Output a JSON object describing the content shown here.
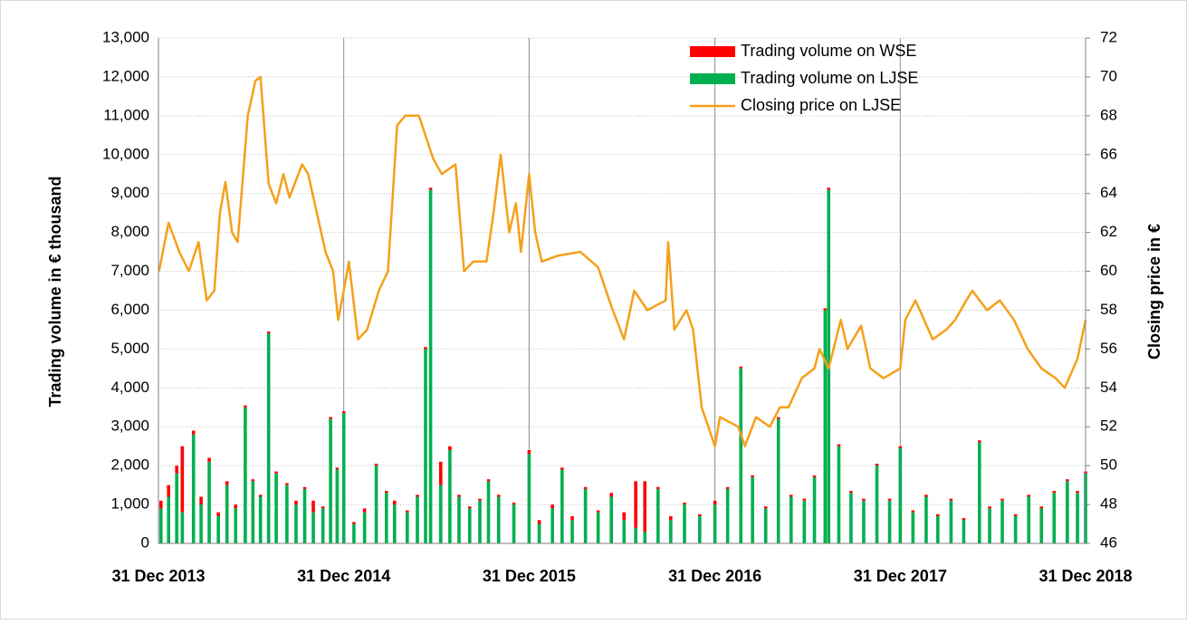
{
  "chart_data": {
    "type": "combo",
    "ylabel": "Trading volume in € thousand",
    "y2label": "Closing price in €",
    "legend": "top",
    "grid": true,
    "xlim": [
      "2013-12-31",
      "2018-12-31"
    ],
    "xticks": [
      {
        "value": "2013-12-31",
        "label": "31 Dec 2013"
      },
      {
        "value": "2014-12-31",
        "label": "31 Dec 2014"
      },
      {
        "value": "2015-12-31",
        "label": "31 Dec 2015"
      },
      {
        "value": "2016-12-31",
        "label": "31 Dec 2016"
      },
      {
        "value": "2017-12-31",
        "label": "31 Dec 2017"
      },
      {
        "value": "2018-12-31",
        "label": "31 Dec 2018"
      }
    ],
    "ylim": [
      0,
      13000
    ],
    "yticks": [
      0,
      {
        "value": 1000,
        "label": "1,000"
      },
      {
        "value": 2000,
        "label": "2,000"
      },
      {
        "value": 3000,
        "label": "3,000"
      },
      {
        "value": 4000,
        "label": "4,000"
      },
      {
        "value": 5000,
        "label": "5,000"
      },
      {
        "value": 6000,
        "label": "6,000"
      },
      {
        "value": 7000,
        "label": "7,000"
      },
      {
        "value": 8000,
        "label": "8,000"
      },
      {
        "value": 9000,
        "label": "9,000"
      },
      {
        "value": 10000,
        "label": "10,000"
      },
      {
        "value": 11000,
        "label": "11,000"
      },
      {
        "value": 12000,
        "label": "12,000"
      },
      {
        "value": 13000,
        "label": "13,000"
      }
    ],
    "y2lim": [
      46,
      72
    ],
    "y2ticks": [
      46,
      48,
      50,
      52,
      54,
      56,
      58,
      60,
      62,
      64,
      66,
      68,
      70,
      72
    ],
    "x": [
      "2014-01-05",
      "2014-01-20",
      "2014-02-05",
      "2014-02-16",
      "2014-03-10",
      "2014-03-25",
      "2014-04-10",
      "2014-04-28",
      "2014-05-15",
      "2014-06-01",
      "2014-06-20",
      "2014-07-05",
      "2014-07-20",
      "2014-08-05",
      "2014-08-20",
      "2014-09-10",
      "2014-09-28",
      "2014-10-15",
      "2014-11-01",
      "2014-11-20",
      "2014-12-05",
      "2014-12-18",
      "2014-12-31",
      "2015-01-20",
      "2015-02-10",
      "2015-03-05",
      "2015-03-25",
      "2015-04-10",
      "2015-05-05",
      "2015-05-25",
      "2015-06-10",
      "2015-06-20",
      "2015-07-10",
      "2015-07-28",
      "2015-08-15",
      "2015-09-05",
      "2015-09-25",
      "2015-10-12",
      "2015-11-01",
      "2015-12-01",
      "2015-12-31",
      "2016-01-20",
      "2016-02-15",
      "2016-03-05",
      "2016-03-25",
      "2016-04-20",
      "2016-05-15",
      "2016-06-10",
      "2016-07-05",
      "2016-07-28",
      "2016-08-15",
      "2016-09-10",
      "2016-10-05",
      "2016-11-01",
      "2016-12-01",
      "2016-12-31",
      "2017-01-25",
      "2017-02-20",
      "2017-03-15",
      "2017-04-10",
      "2017-05-05",
      "2017-05-30",
      "2017-06-25",
      "2017-07-15",
      "2017-08-05",
      "2017-08-12",
      "2017-09-01",
      "2017-09-25",
      "2017-10-20",
      "2017-11-15",
      "2017-12-10",
      "2017-12-31",
      "2018-01-25",
      "2018-02-20",
      "2018-03-15",
      "2018-04-10",
      "2018-05-05",
      "2018-06-05",
      "2018-06-25",
      "2018-07-20",
      "2018-08-15",
      "2018-09-10",
      "2018-10-05",
      "2018-10-30",
      "2018-11-25",
      "2018-12-15",
      "2018-12-31"
    ],
    "series": [
      {
        "name": "Trading volume on WSE",
        "type": "bar",
        "color": "#ff0000",
        "values": [
          200,
          300,
          200,
          1700,
          100,
          200,
          100,
          100,
          100,
          100,
          50,
          50,
          50,
          50,
          50,
          50,
          100,
          50,
          300,
          50,
          50,
          50,
          50,
          50,
          100,
          50,
          50,
          100,
          50,
          50,
          50,
          50,
          600,
          100,
          50,
          50,
          50,
          50,
          50,
          50,
          100,
          100,
          100,
          50,
          100,
          50,
          50,
          100,
          200,
          1200,
          1300,
          50,
          100,
          50,
          50,
          100,
          50,
          50,
          50,
          50,
          50,
          50,
          50,
          50,
          50,
          50,
          50,
          50,
          50,
          50,
          50,
          50,
          50,
          50,
          50,
          50,
          50,
          50,
          50,
          50,
          50,
          50,
          50,
          50,
          50,
          50,
          50
        ]
      },
      {
        "name": "Trading volume on LJSE",
        "type": "bar",
        "color": "#00b050",
        "values": [
          900,
          1200,
          1800,
          800,
          2800,
          1000,
          2100,
          700,
          1500,
          900,
          3500,
          1600,
          1200,
          5400,
          1800,
          1500,
          1000,
          1400,
          800,
          900,
          3200,
          1900,
          3350,
          500,
          800,
          2000,
          1300,
          1000,
          800,
          1200,
          5000,
          9100,
          1500,
          2400,
          1200,
          900,
          1100,
          1600,
          1200,
          1000,
          2300,
          500,
          900,
          1900,
          600,
          1400,
          800,
          1200,
          600,
          400,
          300,
          1400,
          600,
          1000,
          700,
          1000,
          1400,
          4500,
          1700,
          900,
          3200,
          1200,
          1100,
          1700,
          6000,
          9100,
          2500,
          1300,
          1100,
          2000,
          1100,
          2450,
          800,
          1200,
          700,
          1100,
          600,
          2600,
          900,
          1100,
          700,
          1200,
          900,
          1300,
          1600,
          1300,
          1800
        ]
      },
      {
        "name": "Closing price on LJSE",
        "type": "line",
        "axis": "y2",
        "color": "#f5a01a",
        "x": [
          "2014-01-01",
          "2014-01-20",
          "2014-02-10",
          "2014-03-01",
          "2014-03-20",
          "2014-04-05",
          "2014-04-20",
          "2014-05-01",
          "2014-05-12",
          "2014-05-25",
          "2014-06-05",
          "2014-06-25",
          "2014-07-10",
          "2014-07-20",
          "2014-08-05",
          "2014-08-20",
          "2014-09-03",
          "2014-09-15",
          "2014-10-10",
          "2014-10-22",
          "2014-11-25",
          "2014-12-10",
          "2014-12-20",
          "2014-12-31",
          "2015-01-10",
          "2015-01-28",
          "2015-02-15",
          "2015-03-10",
          "2015-03-28",
          "2015-04-15",
          "2015-05-01",
          "2015-05-28",
          "2015-06-25",
          "2015-07-12",
          "2015-08-08",
          "2015-08-25",
          "2015-09-12",
          "2015-10-08",
          "2015-10-22",
          "2015-11-05",
          "2015-11-22",
          "2015-12-05",
          "2015-12-15",
          "2015-12-31",
          "2016-01-12",
          "2016-01-25",
          "2016-02-25",
          "2016-04-10",
          "2016-05-15",
          "2016-06-10",
          "2016-07-05",
          "2016-07-25",
          "2016-08-20",
          "2016-09-25",
          "2016-09-30",
          "2016-10-12",
          "2016-11-05",
          "2016-11-18",
          "2016-12-05",
          "2016-12-31",
          "2017-01-10",
          "2017-02-15",
          "2017-02-28",
          "2017-03-22",
          "2017-04-18",
          "2017-05-08",
          "2017-05-25",
          "2017-06-20",
          "2017-07-15",
          "2017-07-25",
          "2017-08-12",
          "2017-09-05",
          "2017-09-18",
          "2017-10-15",
          "2017-11-02",
          "2017-11-28",
          "2017-12-31",
          "2018-01-10",
          "2018-01-30",
          "2018-03-05",
          "2018-04-01",
          "2018-04-18",
          "2018-05-10",
          "2018-05-22",
          "2018-06-20",
          "2018-07-15",
          "2018-08-12",
          "2018-09-08",
          "2018-10-05",
          "2018-11-02",
          "2018-11-20",
          "2018-12-15",
          "2018-12-31"
        ],
        "values": [
          60,
          62.5,
          61,
          60,
          61.5,
          58.5,
          59,
          63,
          64.6,
          62,
          61.5,
          68,
          69.8,
          70,
          64.5,
          63.5,
          65,
          63.8,
          65.5,
          65,
          61,
          60,
          57.5,
          59,
          60.5,
          56.5,
          57,
          59,
          60,
          67.5,
          68,
          68,
          65.8,
          65,
          65.5,
          60,
          60.5,
          60.5,
          63,
          66,
          62,
          63.5,
          61,
          65,
          62,
          60.5,
          60.8,
          61,
          60.2,
          58.2,
          56.5,
          59,
          58,
          58.5,
          61.5,
          57,
          58,
          57,
          53,
          51,
          52.5,
          52,
          51,
          52.5,
          52,
          53,
          53,
          54.5,
          55,
          56,
          55,
          57.5,
          56,
          57.2,
          55,
          54.5,
          55,
          57.5,
          58.5,
          56.5,
          57,
          57.5,
          58.5,
          59,
          58,
          58.5,
          57.5,
          56,
          55,
          54.5,
          54,
          55.5,
          57.5
        ]
      }
    ]
  }
}
